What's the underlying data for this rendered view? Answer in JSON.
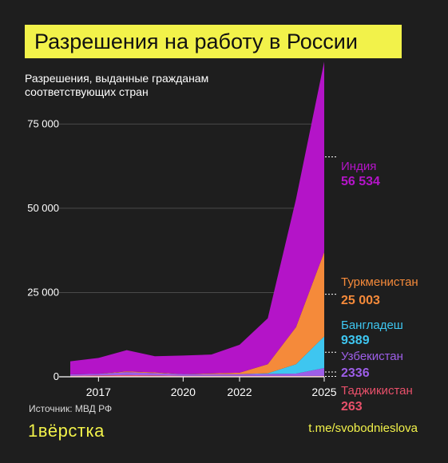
{
  "title": "Разрешения на работу в России",
  "subtitle": "Разрешения, выданные гражданам соответствующих стран",
  "source": "Источник: МВД РФ",
  "brand": "1вёрстка",
  "link": "t.me/svobodnieslova",
  "colors": {
    "background": "#1e1e1e",
    "title_bg": "#f2f24a",
    "india": "#b414c8",
    "turkmenistan": "#f58a3a",
    "bangladesh": "#3ec6f0",
    "uzbekistan": "#9d5ee8",
    "tajikistan": "#e8506a"
  },
  "chart_data": {
    "type": "area",
    "stacked": true,
    "x": [
      2016,
      2017,
      2018,
      2019,
      2020,
      2021,
      2022,
      2023,
      2024,
      2025
    ],
    "ylim": [
      0,
      90000
    ],
    "yticks": [
      0,
      25000,
      50000,
      75000
    ],
    "ytick_labels": [
      "0",
      "25 000",
      "50 000",
      "75 000"
    ],
    "xticks": [
      2017,
      2020,
      2022,
      2025
    ],
    "xtick_labels": [
      "2017",
      "2020",
      "2022",
      "2025"
    ],
    "series": [
      {
        "name": "Таджикистан",
        "values": [
          300,
          400,
          500,
          400,
          300,
          300,
          300,
          250,
          250,
          263
        ],
        "color": "#e8506a",
        "label_value": "263"
      },
      {
        "name": "Узбекистан",
        "values": [
          400,
          500,
          900,
          700,
          500,
          500,
          500,
          600,
          700,
          2336
        ],
        "color": "#9d5ee8",
        "label_value": "2336"
      },
      {
        "name": "Бангладеш",
        "values": [
          0,
          0,
          0,
          0,
          0,
          0,
          0,
          200,
          2800,
          9389
        ],
        "color": "#3ec6f0",
        "label_value": "9389"
      },
      {
        "name": "Туркменистан",
        "values": [
          0,
          0,
          200,
          200,
          0,
          200,
          400,
          2700,
          11000,
          25003
        ],
        "color": "#f58a3a",
        "label_value": "25 003"
      },
      {
        "name": "Индия",
        "values": [
          3900,
          4700,
          6300,
          4800,
          5500,
          5600,
          8300,
          13600,
          38000,
          56534
        ],
        "color": "#b414c8",
        "label_value": "56 534"
      }
    ]
  }
}
